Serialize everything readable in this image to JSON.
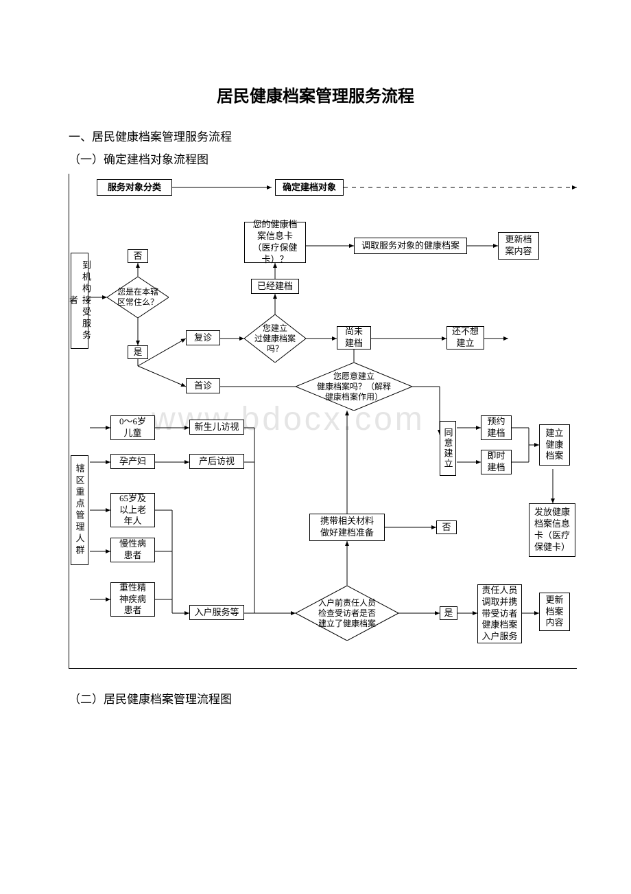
{
  "title": "居民健康档案管理服务流程",
  "h1": "一、居民健康档案管理服务流程",
  "h1a": "（一）确定建档对象流程图",
  "h1b": "（二）居民健康档案管理流程图",
  "watermark": "www.bdocx.com",
  "top": {
    "classify": "服务对象分类",
    "determine": "确定建档对象"
  },
  "left": {
    "visitors": "到机构接受服务者",
    "keygroups": "辖区重点管理人群"
  },
  "q": {
    "resident": "您是在本辖\n区常住么？",
    "hasfile": "您建立\n过健康档案\n吗？",
    "willing": "您愿意建立\n健康档案吗？（解释\n健康档案作用）",
    "precheck": "入户前责任人员\n检查受访者是否\n建立了健康档案"
  },
  "box": {
    "no": "否",
    "yes": "是",
    "revisit": "复诊",
    "first": "首诊",
    "filed": "已经建档",
    "card": "您的健康档\n案信息卡\n（医疗保健\n卡）？",
    "retrieve": "调取服务对象的健康档案",
    "update": "更新档\n案内容",
    "notyet": "尚未\n建档",
    "nowant": "还不想\n建立",
    "agree": "同意建立",
    "appoint": "预约\n建档",
    "now": "即时\n建档",
    "create": "建立\n健康\n档案",
    "issue": "发放健康\n档案信息\n卡（医疗\n保健卡）",
    "children": "0～6岁\n儿童",
    "newborn": "新生儿访视",
    "pregnant": "孕产妇",
    "postnatal": "产后访视",
    "elderly": "65岁及\n以上老\n年人",
    "chronic": "慢性病\n患者",
    "mental": "重性精\n神疾病\n患者",
    "home": "入户服务等",
    "prepare": "携带相关材料\n做好建档准备",
    "yes2": "是",
    "no2": "否",
    "staff": "责任人员\n调取并携\n带受访者\n健康档案\n入户服务",
    "update2": "更新\n档案\n内容"
  },
  "style": {
    "stroke": "#000000",
    "bg": "#ffffff",
    "font_main": 13,
    "font_title": 24,
    "diamond_fill": "#ffffff"
  }
}
